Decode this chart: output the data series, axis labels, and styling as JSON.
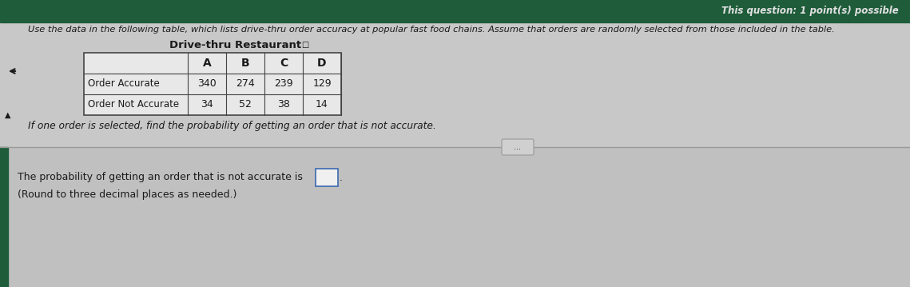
{
  "title_top_right": "This question: 1 point(s) possible",
  "main_text": "Use the data in the following table, which lists drive-thru order accuracy at popular fast food chains. Assume that orders are randomly selected from those included in the table.",
  "table_title": "Drive-thru Restaurant",
  "col_headers": [
    "A",
    "B",
    "C",
    "D"
  ],
  "row_labels": [
    "Order Accurate",
    "Order Not Accurate"
  ],
  "table_data": [
    [
      340,
      274,
      239,
      129
    ],
    [
      34,
      52,
      38,
      14
    ]
  ],
  "question_text": "If one order is selected, find the probability of getting an order that is not accurate.",
  "answer_text": "The probability of getting an order that is not accurate is",
  "answer_note": "(Round to three decimal places as needed.)",
  "bg_color_top": "#1e5c3a",
  "bg_color_upper": "#c8c8c8",
  "bg_color_lower": "#c0c0c0",
  "bg_color_left_bar": "#1e5c3a",
  "text_color_dark": "#1a1a1a",
  "text_color_top": "#e0e0e0",
  "table_bg": "#e8e8e8",
  "table_border": "#444444",
  "divider_color": "#999999",
  "ellipsis_bg": "#d0d0d0",
  "ellipsis_border": "#999999",
  "answer_box_border": "#3a6ab0",
  "answer_box_bg": "#f0f0f0"
}
